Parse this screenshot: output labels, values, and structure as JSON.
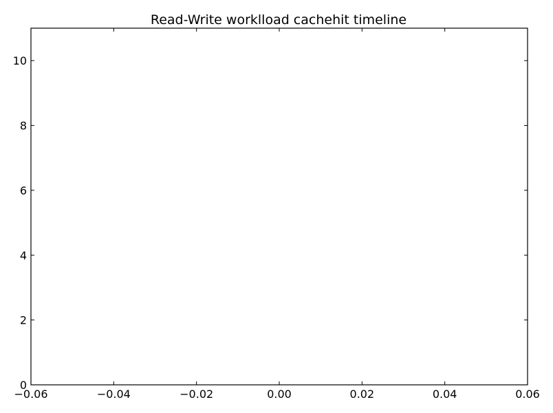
{
  "chart_data": {
    "type": "line",
    "title": "Read-Write worklload cachehit timeline",
    "xlabel": "",
    "ylabel": "",
    "xlim": [
      -0.06,
      0.06
    ],
    "ylim": [
      0,
      11
    ],
    "x_ticks": [
      -0.06,
      -0.04,
      -0.02,
      0.0,
      0.02,
      0.04,
      0.06
    ],
    "x_tick_labels": [
      "−0.06",
      "−0.04",
      "−0.02",
      "0.00",
      "0.02",
      "0.04",
      "0.06"
    ],
    "y_ticks": [
      0,
      2,
      4,
      6,
      8,
      10
    ],
    "y_tick_labels": [
      "0",
      "2",
      "4",
      "6",
      "8",
      "10"
    ],
    "series": [],
    "grid": false
  }
}
